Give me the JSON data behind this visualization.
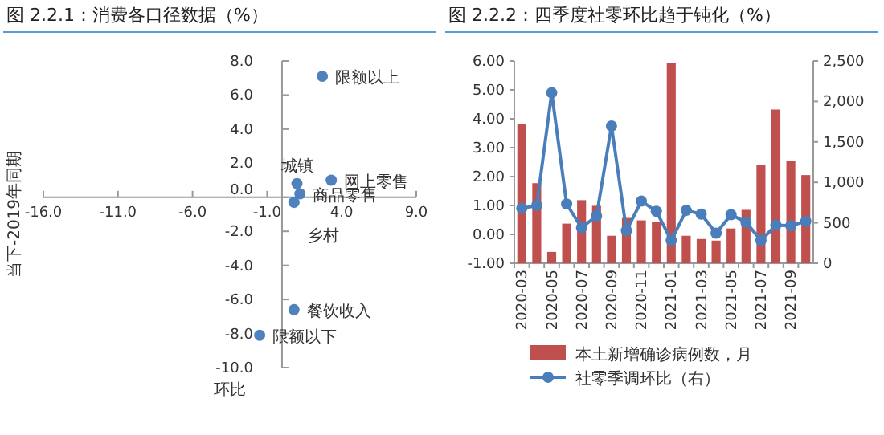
{
  "chart_data": [
    {
      "type": "scatter",
      "title": "图 2.2.1：消费各口径数据（%）",
      "xlabel": "环比",
      "ylabel": "当下-2019年同期",
      "color": "#4f81bd",
      "marker": "circle",
      "grid": false,
      "x": [
        2.7,
        3.3,
        1.0,
        1.2,
        0.8,
        0.8,
        -1.5
      ],
      "values": [
        7.1,
        1.0,
        0.8,
        0.2,
        -0.3,
        -6.6,
        -8.1
      ],
      "xlim": [
        -16,
        9
      ],
      "xticks": [
        {
          "value": -16,
          "label": "-16.0"
        },
        {
          "value": -11,
          "label": "-11.0"
        },
        {
          "value": -6,
          "label": "-6.0"
        },
        {
          "value": -1,
          "label": "-1.0"
        },
        {
          "value": 4,
          "label": "4.0"
        },
        {
          "value": 9,
          "label": "9.0"
        }
      ],
      "ylim": [
        -10,
        8
      ],
      "yticks": [
        {
          "value": -10,
          "label": "-10.0"
        },
        {
          "value": -8,
          "label": "-8.0"
        },
        {
          "value": -6,
          "label": "-6.0"
        },
        {
          "value": -4,
          "label": "-4.0"
        },
        {
          "value": -2,
          "label": "-2.0"
        },
        {
          "value": 0,
          "label": "0.0"
        },
        {
          "value": 2,
          "label": "2.0"
        },
        {
          "value": 4,
          "label": "4.0"
        },
        {
          "value": 6,
          "label": "6.0"
        },
        {
          "value": 8,
          "label": "8.0"
        }
      ],
      "annotations": [
        {
          "text": "限额以上",
          "x": 2.7,
          "y": 7.1
        },
        {
          "text": "网上零售",
          "x": 3.3,
          "y": 1.0
        },
        {
          "text": "城镇",
          "x": 1.0,
          "y": 0.8
        },
        {
          "text": "商品零售",
          "x": 1.2,
          "y": 0.2
        },
        {
          "text": "乡村",
          "x": 0.8,
          "y": -0.3
        },
        {
          "text": "餐饮收入",
          "x": 0.8,
          "y": -6.6
        },
        {
          "text": "限额以下",
          "x": -1.5,
          "y": -8.1
        }
      ]
    },
    {
      "type": "bar",
      "title": "图 2.2.2：四季度社零环比趋于钝化（%）",
      "legend": "bottom",
      "grid": false,
      "marker": "circle",
      "categories": [
        "2020-03",
        null,
        "2020-05",
        null,
        "2020-07",
        null,
        "2020-09",
        null,
        "2020-11",
        null,
        "2021-01",
        null,
        "2021-03",
        null,
        "2021-05",
        null,
        "2021-07",
        null,
        "2021-09",
        null
      ],
      "series": [
        {
          "name": "本土新增确诊病例数，月",
          "type": "bar",
          "axis": "y2",
          "color": "#c0504d",
          "values": [
            1720,
            990,
            140,
            490,
            780,
            710,
            340,
            560,
            530,
            510,
            2480,
            340,
            300,
            280,
            430,
            660,
            1210,
            1900,
            1260,
            1090
          ]
        },
        {
          "name": "社零季调环比（右）",
          "type": "line",
          "color": "#4a7ebb",
          "values": [
            0.9,
            1.0,
            4.9,
            1.05,
            0.23,
            0.64,
            3.75,
            0.13,
            1.15,
            0.8,
            -0.21,
            0.83,
            0.7,
            0.04,
            0.68,
            0.42,
            -0.21,
            0.32,
            0.3,
            0.45
          ]
        }
      ],
      "ylim": [
        -1,
        6
      ],
      "yticks": [
        {
          "value": -1,
          "label": "-1.00"
        },
        {
          "value": 0,
          "label": "0.00"
        },
        {
          "value": 1,
          "label": "1.00"
        },
        {
          "value": 2,
          "label": "2.00"
        },
        {
          "value": 3,
          "label": "3.00"
        },
        {
          "value": 4,
          "label": "4.00"
        },
        {
          "value": 5,
          "label": "5.00"
        },
        {
          "value": 6,
          "label": "6.00"
        }
      ],
      "y2lim": [
        0,
        2500
      ],
      "y2ticks": [
        0,
        500,
        {
          "value": 1000,
          "label": "1,000"
        },
        {
          "value": 1500,
          "label": "1,500"
        },
        {
          "value": 2000,
          "label": "2,000"
        },
        {
          "value": 2500,
          "label": "2,500"
        }
      ]
    }
  ]
}
